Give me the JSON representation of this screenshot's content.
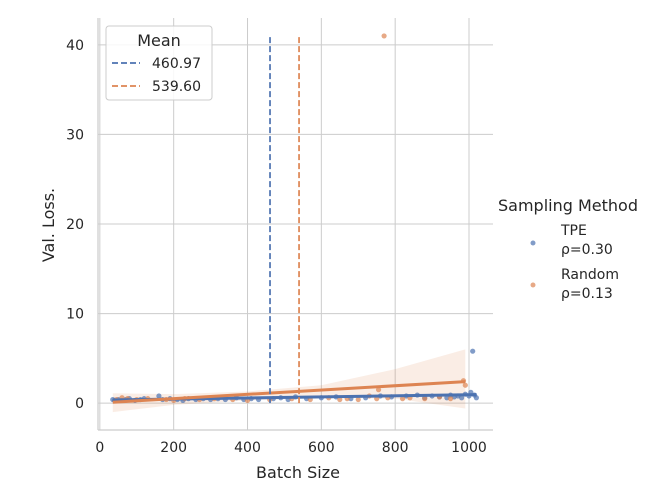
{
  "chart_data": {
    "type": "scatter",
    "xlabel": "Batch Size",
    "ylabel": "Val. Loss.",
    "xlim": [
      -5,
      1065
    ],
    "ylim": [
      -3,
      43
    ],
    "xticks": [
      0,
      200,
      400,
      600,
      800,
      1000
    ],
    "yticks": [
      0,
      10,
      20,
      30,
      40
    ],
    "grid": true,
    "series": [
      {
        "name": "TPE",
        "stat_label": "ρ=0.30",
        "color": "#4c72b0",
        "points": [
          [
            35,
            0.4
          ],
          [
            40,
            0.3
          ],
          [
            50,
            0.4
          ],
          [
            60,
            0.3
          ],
          [
            70,
            0.4
          ],
          [
            80,
            0.5
          ],
          [
            95,
            0.3
          ],
          [
            110,
            0.4
          ],
          [
            120,
            0.5
          ],
          [
            160,
            0.8
          ],
          [
            170,
            0.4
          ],
          [
            190,
            0.5
          ],
          [
            210,
            0.4
          ],
          [
            225,
            0.3
          ],
          [
            240,
            0.5
          ],
          [
            260,
            0.4
          ],
          [
            280,
            0.5
          ],
          [
            300,
            0.4
          ],
          [
            320,
            0.5
          ],
          [
            340,
            0.4
          ],
          [
            370,
            0.6
          ],
          [
            390,
            0.4
          ],
          [
            410,
            0.5
          ],
          [
            430,
            0.4
          ],
          [
            470,
            0.5
          ],
          [
            490,
            0.6
          ],
          [
            510,
            0.4
          ],
          [
            530,
            0.7
          ],
          [
            560,
            0.5
          ],
          [
            600,
            0.6
          ],
          [
            640,
            0.7
          ],
          [
            680,
            0.5
          ],
          [
            720,
            0.6
          ],
          [
            760,
            0.8
          ],
          [
            790,
            0.7
          ],
          [
            830,
            0.8
          ],
          [
            860,
            0.9
          ],
          [
            880,
            0.6
          ],
          [
            900,
            0.8
          ],
          [
            920,
            0.7
          ],
          [
            940,
            0.6
          ],
          [
            950,
            0.9
          ],
          [
            960,
            0.7
          ],
          [
            970,
            0.8
          ],
          [
            980,
            0.6
          ],
          [
            990,
            1.0
          ],
          [
            1000,
            0.8
          ],
          [
            1005,
            1.2
          ],
          [
            1010,
            5.8
          ],
          [
            1015,
            0.9
          ],
          [
            1020,
            0.6
          ]
        ],
        "regression": {
          "x0": 35,
          "y0": 0.35,
          "x1": 1020,
          "y1": 0.95
        },
        "mean": 460.97
      },
      {
        "name": "Random",
        "stat_label": "ρ=0.13",
        "color": "#dd8452",
        "points": [
          [
            45,
            0.4
          ],
          [
            60,
            0.6
          ],
          [
            65,
            0.3
          ],
          [
            75,
            0.5
          ],
          [
            100,
            0.4
          ],
          [
            130,
            0.5
          ],
          [
            180,
            0.4
          ],
          [
            200,
            0.3
          ],
          [
            230,
            0.5
          ],
          [
            270,
            0.4
          ],
          [
            310,
            0.5
          ],
          [
            360,
            0.4
          ],
          [
            400,
            0.3
          ],
          [
            460,
            0.4
          ],
          [
            520,
            0.5
          ],
          [
            570,
            0.4
          ],
          [
            620,
            0.6
          ],
          [
            650,
            0.4
          ],
          [
            670,
            0.5
          ],
          [
            700,
            0.4
          ],
          [
            730,
            0.8
          ],
          [
            750,
            0.5
          ],
          [
            755,
            1.5
          ],
          [
            770,
            41.0
          ],
          [
            780,
            0.6
          ],
          [
            820,
            0.5
          ],
          [
            840,
            0.6
          ],
          [
            880,
            0.5
          ],
          [
            920,
            0.7
          ],
          [
            950,
            0.5
          ],
          [
            985,
            2.5
          ],
          [
            990,
            2.0
          ]
        ],
        "regression": {
          "x0": 35,
          "y0": 0.1,
          "x1": 990,
          "y1": 2.4
        },
        "ci_band": [
          [
            35,
            -1.0,
            1.1
          ],
          [
            200,
            -0.2,
            1.0
          ],
          [
            400,
            0.3,
            1.3
          ],
          [
            600,
            0.6,
            2.0
          ],
          [
            800,
            0.5,
            3.8
          ],
          [
            990,
            -0.6,
            6.0
          ]
        ],
        "mean": 539.6
      }
    ],
    "mean_legend": {
      "title": "Mean",
      "placement": "upper-left",
      "entries": [
        {
          "label": "460.97",
          "color": "#4c72b0"
        },
        {
          "label": "539.60",
          "color": "#dd8452"
        }
      ]
    },
    "legend": {
      "title": "Sampling Method",
      "placement": "outside-right",
      "entries": [
        {
          "name": "TPE",
          "stat": "ρ=0.30",
          "color": "#4c72b0"
        },
        {
          "name": "Random",
          "stat": "ρ=0.13",
          "color": "#dd8452"
        }
      ]
    }
  }
}
